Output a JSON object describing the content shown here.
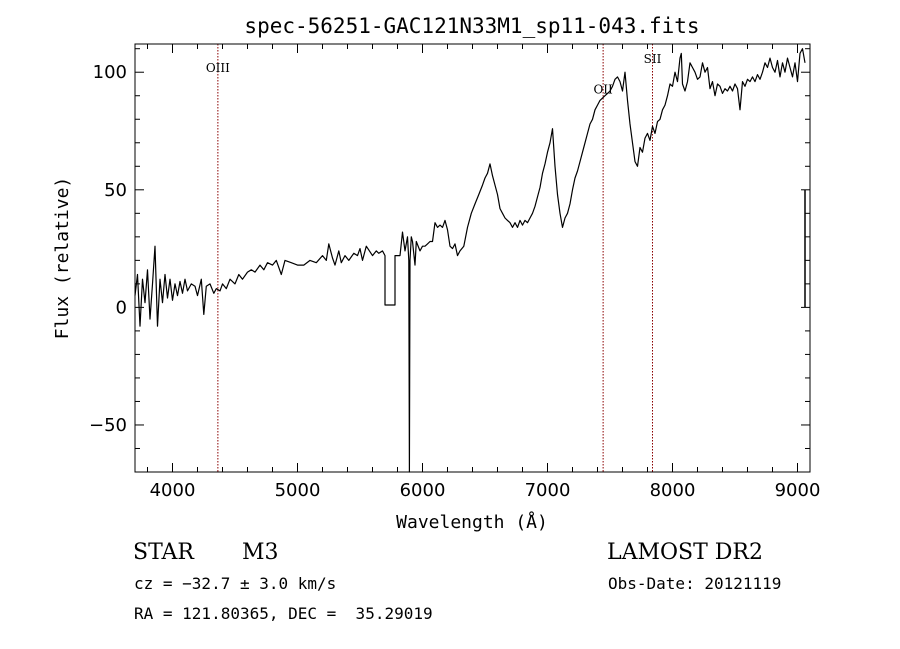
{
  "chart_data": {
    "type": "line",
    "title": "spec-56251-GAC121N33M1_sp11-043.fits",
    "xlabel": "Wavelength (Å)",
    "ylabel": "Flux (relative)",
    "xlim": [
      3700,
      9100
    ],
    "ylim": [
      -70,
      112
    ],
    "x_ticks": [
      4000,
      5000,
      6000,
      7000,
      8000,
      9000
    ],
    "y_ticks": [
      -50,
      0,
      50,
      100
    ],
    "x_tick_labels": [
      "4000",
      "5000",
      "6000",
      "7000",
      "8000",
      "9000"
    ],
    "y_tick_labels": [
      "−50",
      "0",
      "50",
      "100"
    ],
    "grid": false,
    "series": [
      {
        "color": "#000000",
        "points": [
          [
            3700,
            5
          ],
          [
            3720,
            14
          ],
          [
            3740,
            -8
          ],
          [
            3760,
            12
          ],
          [
            3780,
            2
          ],
          [
            3800,
            16
          ],
          [
            3820,
            -5
          ],
          [
            3840,
            10
          ],
          [
            3860,
            26
          ],
          [
            3880,
            -8
          ],
          [
            3900,
            12
          ],
          [
            3920,
            2
          ],
          [
            3940,
            14
          ],
          [
            3960,
            4
          ],
          [
            3980,
            12
          ],
          [
            4000,
            3
          ],
          [
            4020,
            10
          ],
          [
            4040,
            5
          ],
          [
            4060,
            11
          ],
          [
            4080,
            6
          ],
          [
            4100,
            12
          ],
          [
            4120,
            7
          ],
          [
            4150,
            10
          ],
          [
            4180,
            9
          ],
          [
            4200,
            5
          ],
          [
            4230,
            12
          ],
          [
            4250,
            -3
          ],
          [
            4270,
            9
          ],
          [
            4300,
            10
          ],
          [
            4330,
            6
          ],
          [
            4350,
            8
          ],
          [
            4380,
            7
          ],
          [
            4400,
            10
          ],
          [
            4430,
            8
          ],
          [
            4460,
            12
          ],
          [
            4500,
            10
          ],
          [
            4530,
            14
          ],
          [
            4560,
            12
          ],
          [
            4600,
            15
          ],
          [
            4630,
            16
          ],
          [
            4660,
            15
          ],
          [
            4700,
            18
          ],
          [
            4730,
            16
          ],
          [
            4760,
            19
          ],
          [
            4800,
            18
          ],
          [
            4830,
            20
          ],
          [
            4870,
            14
          ],
          [
            4900,
            20
          ],
          [
            4950,
            19
          ],
          [
            5000,
            18
          ],
          [
            5050,
            18
          ],
          [
            5100,
            20
          ],
          [
            5150,
            19
          ],
          [
            5200,
            22
          ],
          [
            5230,
            20
          ],
          [
            5250,
            27
          ],
          [
            5280,
            21
          ],
          [
            5300,
            18
          ],
          [
            5330,
            24
          ],
          [
            5350,
            19
          ],
          [
            5380,
            22
          ],
          [
            5410,
            20
          ],
          [
            5450,
            23
          ],
          [
            5480,
            22
          ],
          [
            5500,
            25
          ],
          [
            5520,
            20
          ],
          [
            5550,
            26
          ],
          [
            5600,
            22
          ],
          [
            5630,
            24
          ],
          [
            5650,
            23
          ],
          [
            5680,
            24
          ],
          [
            5700,
            22
          ],
          [
            5700,
            1
          ],
          [
            5780,
            1
          ],
          [
            5780,
            22
          ],
          [
            5820,
            22
          ],
          [
            5840,
            32
          ],
          [
            5860,
            24
          ],
          [
            5880,
            30
          ],
          [
            5890,
            20
          ],
          [
            5895,
            -70
          ],
          [
            5900,
            20
          ],
          [
            5910,
            30
          ],
          [
            5920,
            28
          ],
          [
            5940,
            18
          ],
          [
            5950,
            28
          ],
          [
            5980,
            24
          ],
          [
            6000,
            26
          ],
          [
            6020,
            26
          ],
          [
            6040,
            27
          ],
          [
            6060,
            28
          ],
          [
            6080,
            28
          ],
          [
            6100,
            36
          ],
          [
            6120,
            34
          ],
          [
            6140,
            35
          ],
          [
            6160,
            34
          ],
          [
            6180,
            37
          ],
          [
            6200,
            33
          ],
          [
            6220,
            26
          ],
          [
            6240,
            25
          ],
          [
            6260,
            27
          ],
          [
            6280,
            22
          ],
          [
            6300,
            24
          ],
          [
            6330,
            26
          ],
          [
            6360,
            34
          ],
          [
            6390,
            40
          ],
          [
            6420,
            44
          ],
          [
            6450,
            48
          ],
          [
            6480,
            52
          ],
          [
            6500,
            55
          ],
          [
            6520,
            57
          ],
          [
            6540,
            61
          ],
          [
            6560,
            56
          ],
          [
            6580,
            52
          ],
          [
            6600,
            48
          ],
          [
            6620,
            42
          ],
          [
            6640,
            40
          ],
          [
            6660,
            38
          ],
          [
            6680,
            37
          ],
          [
            6700,
            36
          ],
          [
            6720,
            34
          ],
          [
            6740,
            36
          ],
          [
            6760,
            34
          ],
          [
            6780,
            37
          ],
          [
            6800,
            35
          ],
          [
            6820,
            37
          ],
          [
            6840,
            36
          ],
          [
            6860,
            38
          ],
          [
            6880,
            40
          ],
          [
            6900,
            43
          ],
          [
            6920,
            47
          ],
          [
            6940,
            51
          ],
          [
            6960,
            57
          ],
          [
            6980,
            61
          ],
          [
            7000,
            66
          ],
          [
            7020,
            70
          ],
          [
            7040,
            76
          ],
          [
            7060,
            60
          ],
          [
            7080,
            48
          ],
          [
            7100,
            40
          ],
          [
            7120,
            34
          ],
          [
            7140,
            38
          ],
          [
            7160,
            40
          ],
          [
            7180,
            44
          ],
          [
            7200,
            50
          ],
          [
            7220,
            55
          ],
          [
            7240,
            58
          ],
          [
            7260,
            62
          ],
          [
            7280,
            66
          ],
          [
            7300,
            70
          ],
          [
            7320,
            74
          ],
          [
            7340,
            78
          ],
          [
            7360,
            80
          ],
          [
            7380,
            84
          ],
          [
            7400,
            86
          ],
          [
            7420,
            88
          ],
          [
            7440,
            89
          ],
          [
            7460,
            90
          ],
          [
            7480,
            91
          ],
          [
            7500,
            92
          ],
          [
            7520,
            94
          ],
          [
            7540,
            97
          ],
          [
            7560,
            98
          ],
          [
            7580,
            96
          ],
          [
            7600,
            92
          ],
          [
            7620,
            100
          ],
          [
            7640,
            88
          ],
          [
            7660,
            78
          ],
          [
            7680,
            70
          ],
          [
            7700,
            62
          ],
          [
            7720,
            60
          ],
          [
            7740,
            68
          ],
          [
            7760,
            66
          ],
          [
            7780,
            72
          ],
          [
            7800,
            74
          ],
          [
            7820,
            71
          ],
          [
            7840,
            77
          ],
          [
            7860,
            74
          ],
          [
            7880,
            79
          ],
          [
            7900,
            80
          ],
          [
            7920,
            84
          ],
          [
            7940,
            86
          ],
          [
            7960,
            90
          ],
          [
            7980,
            95
          ],
          [
            8000,
            94
          ],
          [
            8020,
            100
          ],
          [
            8040,
            96
          ],
          [
            8060,
            106
          ],
          [
            8070,
            108
          ],
          [
            8080,
            95
          ],
          [
            8100,
            92
          ],
          [
            8120,
            96
          ],
          [
            8140,
            104
          ],
          [
            8160,
            102
          ],
          [
            8180,
            100
          ],
          [
            8200,
            97
          ],
          [
            8220,
            98
          ],
          [
            8240,
            104
          ],
          [
            8260,
            100
          ],
          [
            8280,
            102
          ],
          [
            8300,
            93
          ],
          [
            8320,
            96
          ],
          [
            8340,
            90
          ],
          [
            8360,
            95
          ],
          [
            8380,
            94
          ],
          [
            8400,
            91
          ],
          [
            8420,
            93
          ],
          [
            8440,
            92
          ],
          [
            8460,
            94
          ],
          [
            8480,
            92
          ],
          [
            8500,
            95
          ],
          [
            8520,
            93
          ],
          [
            8540,
            84
          ],
          [
            8560,
            96
          ],
          [
            8580,
            94
          ],
          [
            8600,
            97
          ],
          [
            8620,
            96
          ],
          [
            8640,
            98
          ],
          [
            8660,
            96
          ],
          [
            8680,
            99
          ],
          [
            8700,
            97
          ],
          [
            8720,
            100
          ],
          [
            8740,
            104
          ],
          [
            8760,
            102
          ],
          [
            8780,
            106
          ],
          [
            8800,
            102
          ],
          [
            8820,
            100
          ],
          [
            8840,
            105
          ],
          [
            8860,
            98
          ],
          [
            8880,
            104
          ],
          [
            8900,
            100
          ],
          [
            8920,
            106
          ],
          [
            8940,
            102
          ],
          [
            8960,
            98
          ],
          [
            8980,
            104
          ],
          [
            9000,
            96
          ],
          [
            9020,
            108
          ],
          [
            9040,
            110
          ],
          [
            9060,
            104
          ]
        ]
      }
    ],
    "annotations": [
      {
        "label": "OIII",
        "wavelength": 4363,
        "label_y": 100
      },
      {
        "label": "OII",
        "wavelength": 7445,
        "label_y": 91
      },
      {
        "label": "SII",
        "wavelength": 7840,
        "label_y": 104
      }
    ]
  },
  "info": {
    "object_class": "STAR",
    "object_subclass": "M3",
    "survey": "LAMOST DR2",
    "redshift_line": "cz = −32.7 ± 3.0 km/s",
    "obs_date_line": "Obs-Date: 20121119",
    "coords_line": "RA = 121.80365, DEC =  35.29019"
  },
  "colors": {
    "annotation_line": "#8b0000",
    "spectrum": "#000000",
    "axes": "#000000"
  }
}
